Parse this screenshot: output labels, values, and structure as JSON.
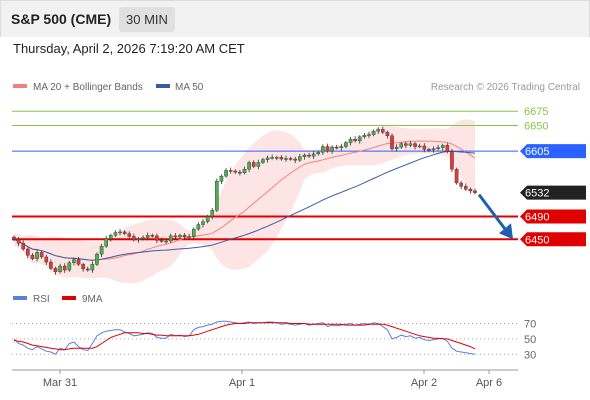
{
  "header": {
    "symbol": "S&P 500 (CME)",
    "timeframe": "30 MIN"
  },
  "datetime": "Thursday, April 2, 2026 7:19:20 AM CET",
  "colors": {
    "bullish": "#4caf50",
    "bearish": "#e53935",
    "ma20": "#f08080",
    "bands": "#fde0e0",
    "ma50": "#3b5ba5",
    "resistance": "#8bc34a",
    "support": "#e00000",
    "pivot": "#2962ff",
    "last": "#222222",
    "arrow": "#1f5fb0",
    "rsi": "#5b7fd6",
    "rsi_ma": "#e00000"
  },
  "chart_data": [
    {
      "type": "candlestick",
      "legend": [
        {
          "name": "MA 20 + Bollinger Bands",
          "color": "#f08080"
        },
        {
          "name": "MA 50",
          "color": "#3b5ba5"
        }
      ],
      "credit": "Research © 2026 Trading Central",
      "ylim": [
        6375,
        6700
      ],
      "x_ticks": [
        "Mar 31",
        "Apr 1",
        "Apr 2",
        "Apr 6"
      ],
      "levels": [
        {
          "value": 6675,
          "label": "6675",
          "kind": "resistance"
        },
        {
          "value": 6650,
          "label": "6650",
          "kind": "resistance"
        },
        {
          "value": 6605,
          "label": "6605",
          "kind": "pivot"
        },
        {
          "value": 6532,
          "label": "6532",
          "kind": "last"
        },
        {
          "value": 6490,
          "label": "6490",
          "kind": "support"
        },
        {
          "value": 6450,
          "label": "6450",
          "kind": "support"
        }
      ],
      "close": [
        6450,
        6443,
        6433,
        6422,
        6416,
        6427,
        6419,
        6410,
        6399,
        6393,
        6403,
        6396,
        6409,
        6414,
        6406,
        6398,
        6396,
        6406,
        6424,
        6438,
        6451,
        6457,
        6462,
        6463,
        6460,
        6455,
        6449,
        6451,
        6453,
        6457,
        6456,
        6448,
        6447,
        6447,
        6456,
        6454,
        6457,
        6454,
        6455,
        6468,
        6476,
        6481,
        6490,
        6501,
        6552,
        6561,
        6571,
        6570,
        6568,
        6567,
        6573,
        6585,
        6578,
        6585,
        6590,
        6593,
        6594,
        6594,
        6591,
        6592,
        6591,
        6589,
        6595,
        6598,
        6596,
        6600,
        6603,
        6613,
        6605,
        6612,
        6611,
        6613,
        6620,
        6626,
        6623,
        6630,
        6633,
        6634,
        6640,
        6643,
        6638,
        6632,
        6609,
        6612,
        6618,
        6615,
        6618,
        6613,
        6614,
        6608,
        6607,
        6609,
        6611,
        6615,
        6604,
        6573,
        6549,
        6543,
        6538,
        6535,
        6532
      ],
      "forecast_arrow": {
        "from": 6532,
        "to": 6450
      }
    },
    {
      "type": "line",
      "legend": [
        {
          "name": "RSI",
          "color": "#5b7fd6"
        },
        {
          "name": "9MA",
          "color": "#e00000"
        }
      ],
      "ylim": [
        20,
        85
      ],
      "levels": [
        70,
        50,
        30
      ],
      "series": [
        {
          "name": "RSI",
          "values": [
            50,
            44,
            42,
            38,
            36,
            40,
            37,
            34,
            33,
            30,
            38,
            36,
            44,
            46,
            40,
            36,
            35,
            44,
            54,
            58,
            60,
            61,
            62,
            62,
            59,
            57,
            54,
            55,
            56,
            58,
            57,
            52,
            51,
            51,
            56,
            54,
            55,
            53,
            54,
            62,
            65,
            66,
            68,
            69,
            72,
            73,
            73,
            72,
            71,
            70,
            71,
            72,
            70,
            71,
            71,
            72,
            72,
            71,
            69,
            70,
            69,
            68,
            69,
            70,
            68,
            69,
            70,
            71,
            66,
            68,
            67,
            68,
            69,
            70,
            68,
            69,
            70,
            69,
            71,
            70,
            66,
            62,
            50,
            52,
            55,
            53,
            54,
            51,
            52,
            49,
            48,
            49,
            50,
            51,
            47,
            38,
            34,
            33,
            32,
            31,
            30
          ]
        },
        {
          "name": "9MA",
          "values": [
            48,
            47,
            46,
            44,
            42,
            41,
            40,
            39,
            38,
            37,
            36,
            36,
            37,
            38,
            38,
            38,
            38,
            38,
            40,
            44,
            48,
            52,
            54,
            56,
            58,
            58,
            58,
            58,
            57,
            57,
            56,
            55,
            55,
            54,
            54,
            54,
            54,
            54,
            54,
            55,
            56,
            58,
            60,
            62,
            64,
            66,
            68,
            69,
            70,
            70,
            70,
            71,
            71,
            71,
            71,
            71,
            71,
            71,
            71,
            71,
            70,
            70,
            70,
            70,
            69,
            69,
            69,
            69,
            69,
            69,
            69,
            69,
            68,
            68,
            68,
            68,
            68,
            69,
            69,
            69,
            69,
            68,
            66,
            64,
            62,
            60,
            58,
            56,
            54,
            53,
            52,
            51,
            51,
            50,
            50,
            48,
            46,
            44,
            42,
            40,
            37
          ]
        }
      ]
    }
  ]
}
